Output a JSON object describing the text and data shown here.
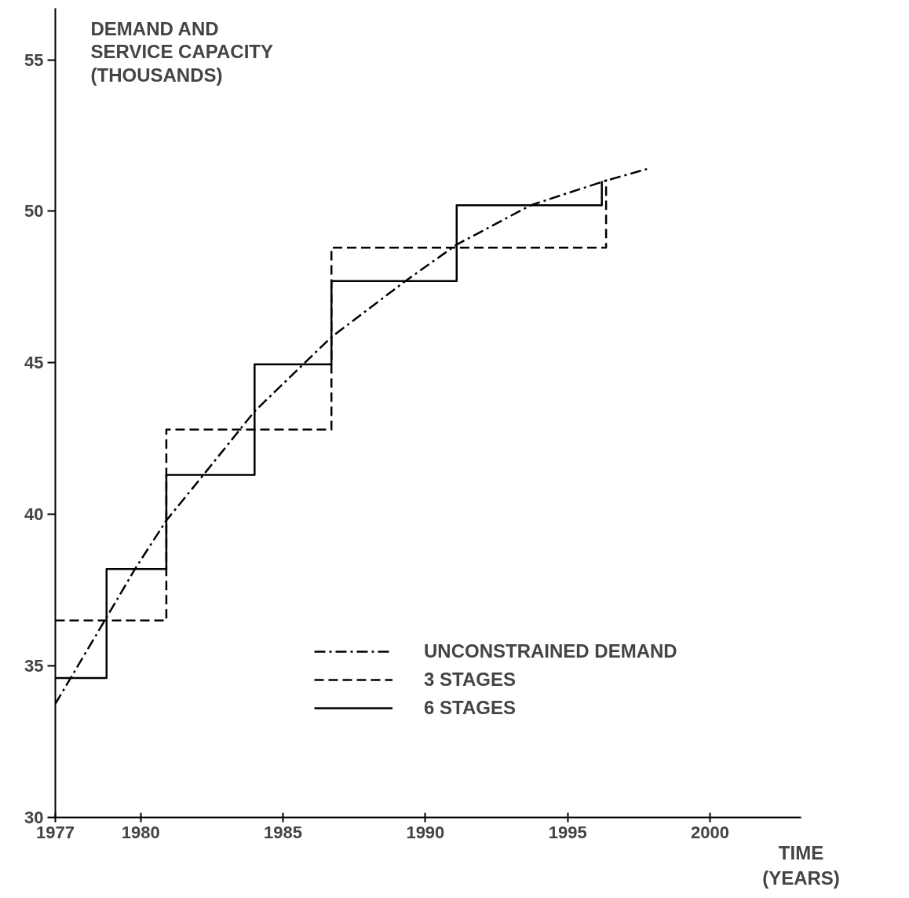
{
  "chart_data": {
    "type": "line",
    "ylabel": "DEMAND AND\nSERVICE CAPACITY\n(THOUSANDS)",
    "xlabel": "TIME\n(YEARS)",
    "xlim": [
      1977,
      2003.2
    ],
    "ylim": [
      30,
      56.7
    ],
    "xticks": [
      1977,
      1980,
      1985,
      1990,
      1995,
      2000
    ],
    "yticks": [
      30,
      35,
      40,
      45,
      50,
      55
    ],
    "grid": false,
    "legend": "bottom right",
    "marker": "none",
    "series": [
      {
        "name": "UNCONSTRAINED DEMAND",
        "line_style": "dashdot",
        "color": "#000000",
        "x": [
          1977,
          1978.8,
          1979.8,
          1980.9,
          1982.2,
          1984,
          1986.7,
          1989.3,
          1991.1,
          1993.7,
          1996.3,
          1997.8
        ],
        "values": [
          33.75,
          36.6,
          38.2,
          39.8,
          41.3,
          43.4,
          45.85,
          47.7,
          48.9,
          50.2,
          51.0,
          51.4
        ]
      },
      {
        "name": "3 STAGES",
        "type": "step",
        "line_style": "dashed",
        "color": "#000000",
        "x": [
          1977,
          1980.9,
          1986.7,
          1996.35
        ],
        "values": [
          36.5,
          42.8,
          48.8,
          51.05
        ]
      },
      {
        "name": "6 STAGES",
        "type": "step",
        "line_style": "solid",
        "color": "#000000",
        "x": [
          1977,
          1978.8,
          1980.9,
          1984,
          1986.7,
          1991.1,
          1996.2
        ],
        "values": [
          34.6,
          38.2,
          41.3,
          44.95,
          47.7,
          50.2,
          51.0
        ]
      }
    ]
  }
}
